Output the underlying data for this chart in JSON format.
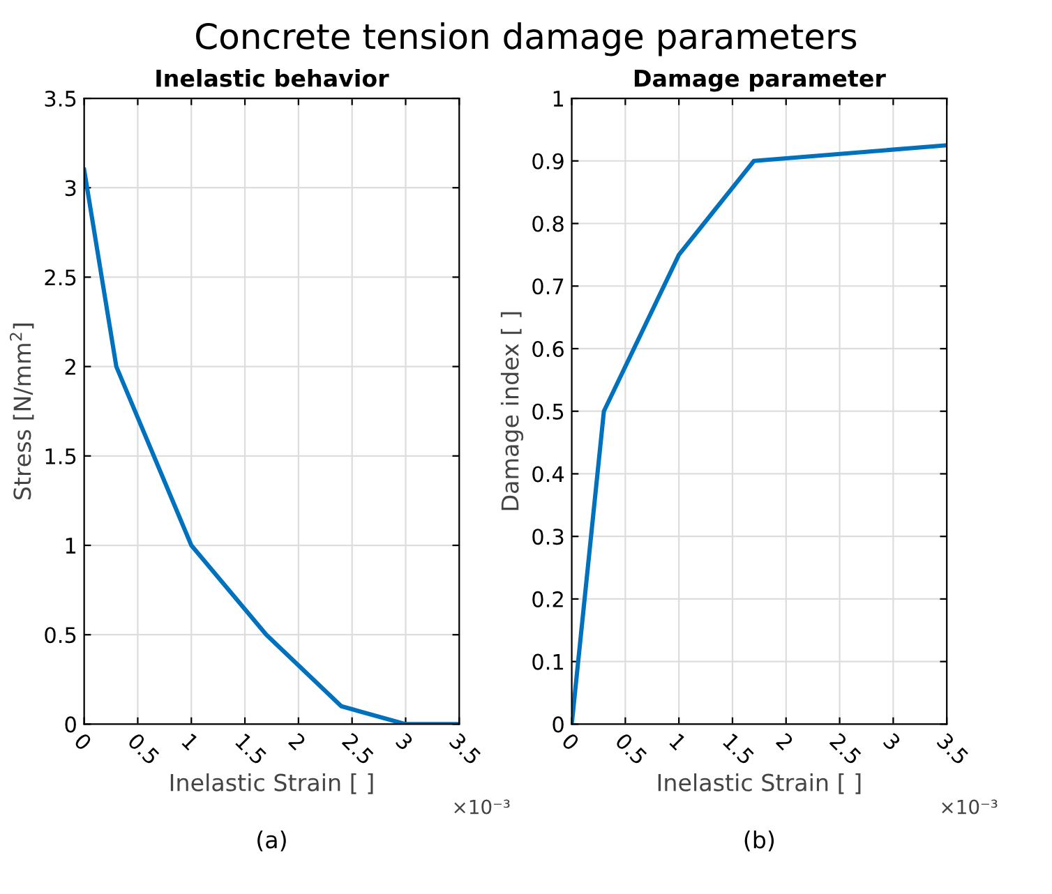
{
  "chart_data": [
    {
      "type": "line",
      "title": "Inelastic behavior",
      "xlabel": "Inelastic Strain [ ]",
      "ylabel": "Stress [N/mm$^{2}$]",
      "annotations": [
        "Concrete tension damage parameters",
        "×10⁻³",
        "(a)"
      ],
      "x": [
        0,
        0.3,
        1.0,
        1.7,
        2.4,
        3.0,
        3.5
      ],
      "series": [
        {
          "color": "#0072bd",
          "values": [
            3.1,
            2.0,
            1.0,
            0.5,
            0.1,
            0.0,
            0.0
          ]
        }
      ],
      "xlim": [
        0,
        3.5
      ],
      "xticks": [
        0,
        0.5,
        1,
        1.5,
        2,
        2.5,
        3,
        3.5
      ],
      "ylim": [
        0,
        3.5
      ],
      "yticks": [
        0,
        0.5,
        1,
        1.5,
        2,
        2.5,
        3,
        3.5
      ],
      "grid": true
    },
    {
      "type": "line",
      "title": "Damage parameter",
      "xlabel": "Inelastic Strain [ ]",
      "ylabel": "Damage index [ ]",
      "annotations": [
        "×10⁻³",
        "(b)"
      ],
      "x": [
        0,
        0.3,
        1.0,
        1.7,
        3.5
      ],
      "series": [
        {
          "color": "#0072bd",
          "values": [
            0,
            0.5,
            0.75,
            0.9,
            0.925
          ]
        }
      ],
      "xlim": [
        0,
        3.5
      ],
      "xticks": [
        0,
        0.5,
        1,
        1.5,
        2,
        2.5,
        3,
        3.5
      ],
      "ylim": [
        0,
        1
      ],
      "yticks": [
        0,
        0.1,
        0.2,
        0.3,
        0.4,
        0.5,
        0.6,
        0.7,
        0.8,
        0.9,
        1
      ],
      "grid": true
    }
  ]
}
